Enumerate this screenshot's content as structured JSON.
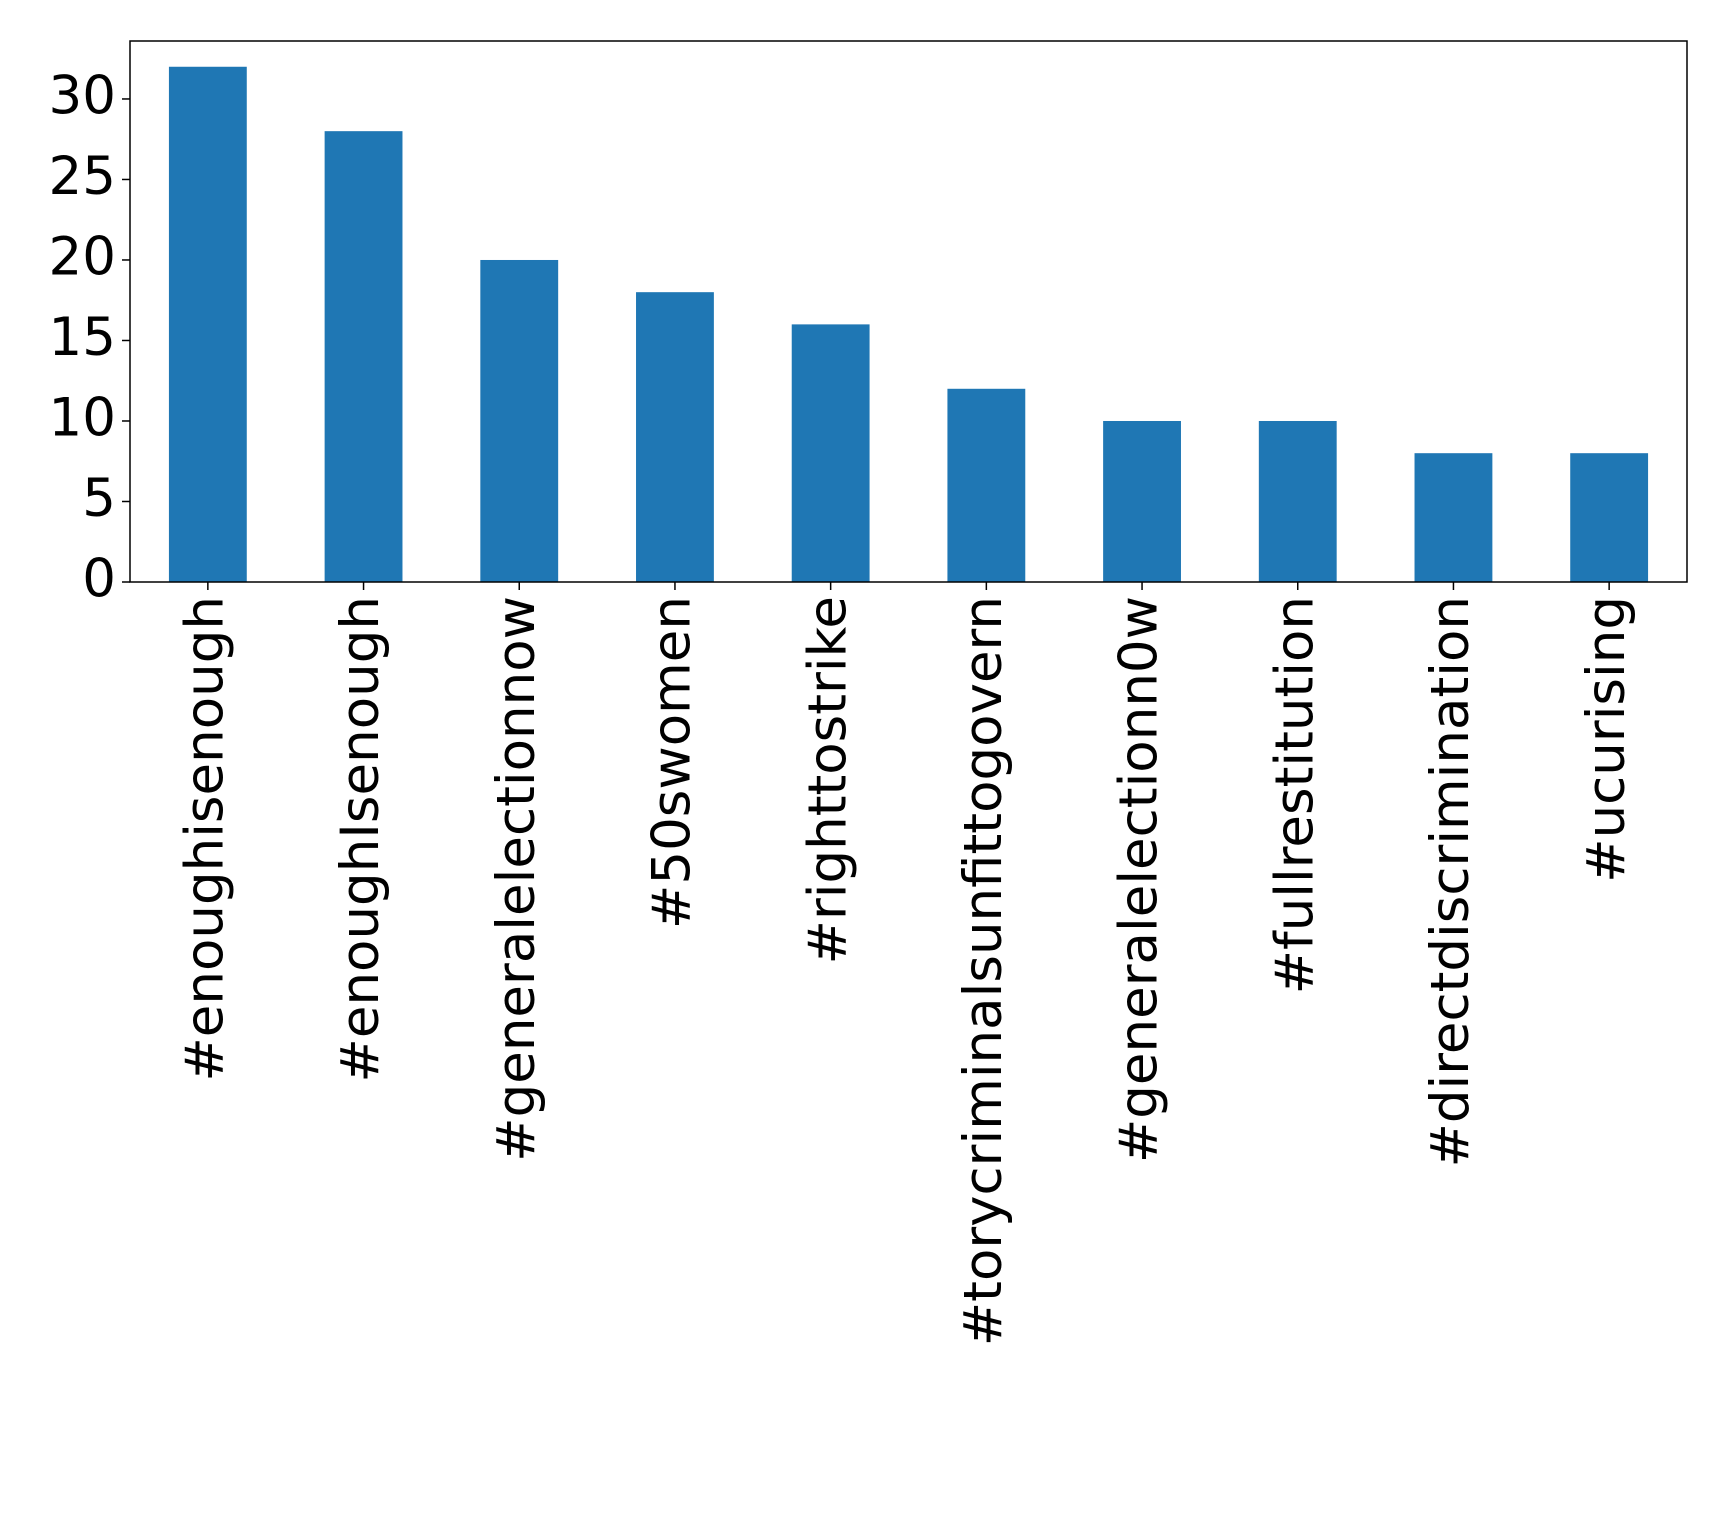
{
  "chart_data": {
    "type": "bar",
    "categories": [
      "#enoughisenough",
      "#enoughIsenough",
      "#generalelectionnow",
      "#50swomen",
      "#righttostrike",
      "#torycriminalsunfittogovern",
      "#generalelectionn0w",
      "#fullrestitution",
      "#directdiscrimination",
      "#ucurising"
    ],
    "values": [
      32,
      28,
      20,
      18,
      16,
      12,
      10,
      10,
      8,
      8
    ],
    "color": "#1f77b4",
    "ylim": [
      0,
      33.6
    ],
    "yticks": [
      0,
      5,
      10,
      15,
      20,
      25,
      30
    ],
    "grid": false
  }
}
